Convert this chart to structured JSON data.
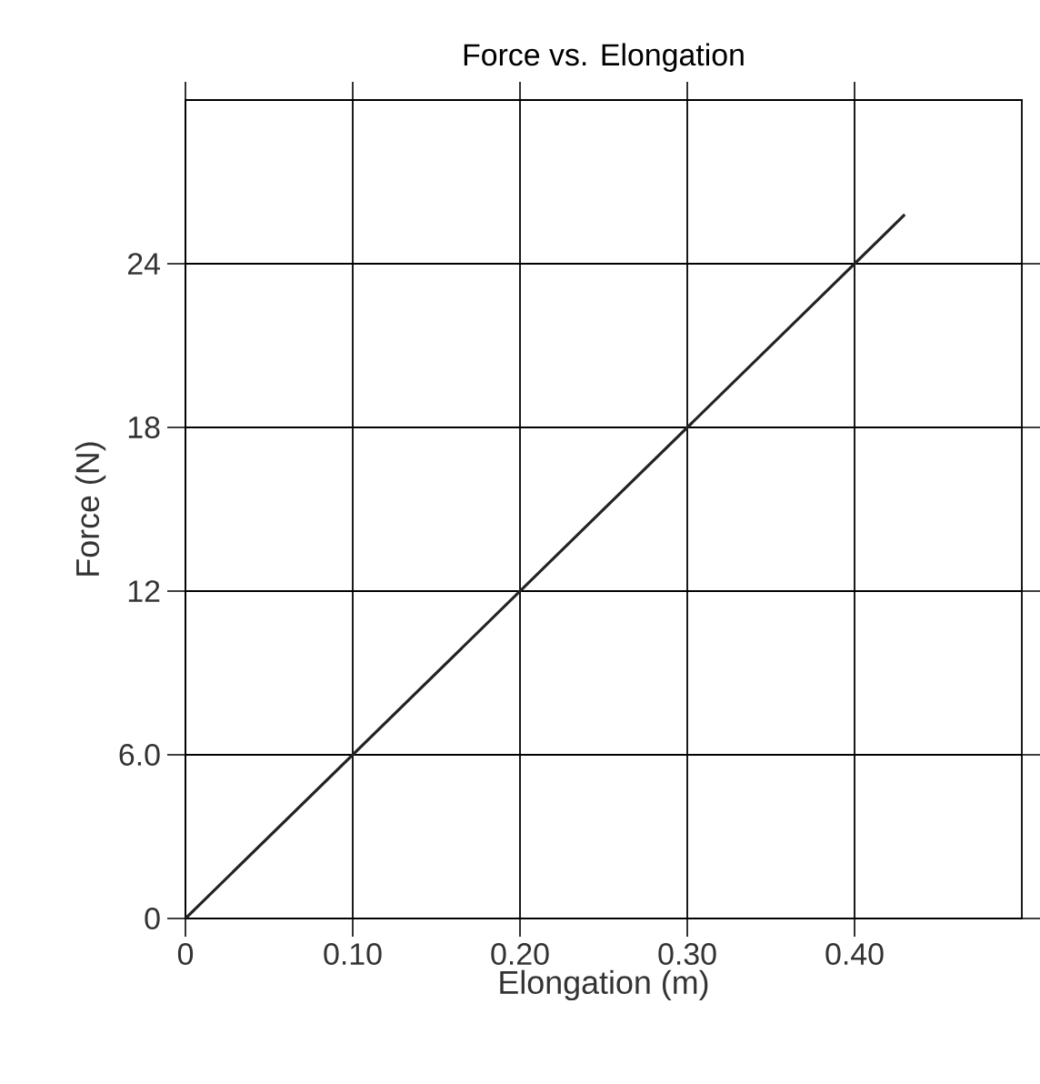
{
  "chart_data": {
    "type": "line",
    "title": "Force vs. Elongation",
    "xlabel": "Elongation (m)",
    "ylabel": "Force (N)",
    "x": [
      0,
      0.43
    ],
    "series": [
      {
        "color": "#222222",
        "values": [
          0,
          25.8
        ]
      }
    ],
    "xlim": [
      0,
      0.5
    ],
    "ylim": [
      0,
      30
    ],
    "xticks": [
      0,
      {
        "value": 0.1,
        "label": "0.10"
      },
      {
        "value": 0.2,
        "label": "0.20"
      },
      {
        "value": 0.3,
        "label": "0.30"
      },
      {
        "value": 0.4,
        "label": "0.40"
      }
    ],
    "yticks": [
      0,
      {
        "value": 6,
        "label": "6.0"
      },
      12,
      18,
      24
    ],
    "grid": true,
    "marker": "none",
    "line_style": "solid"
  }
}
